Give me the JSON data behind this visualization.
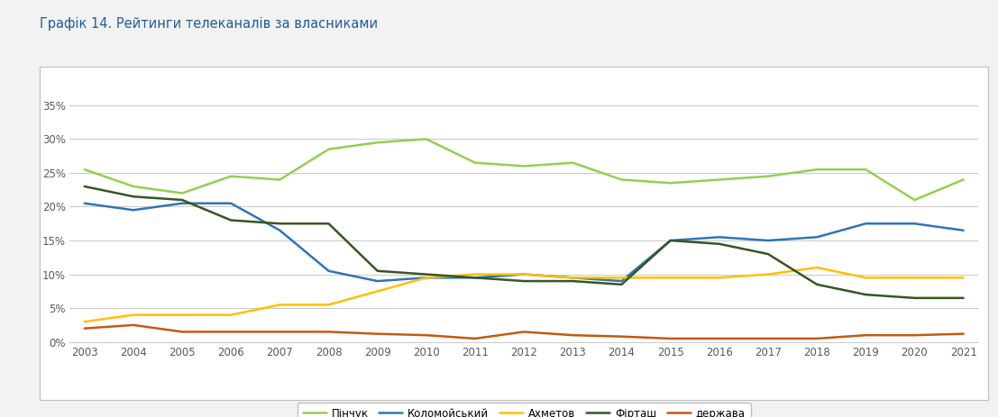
{
  "title": "Графік 14. Рейтинги телеканалів за власниками",
  "years": [
    2003,
    2004,
    2005,
    2006,
    2007,
    2008,
    2009,
    2010,
    2011,
    2012,
    2013,
    2014,
    2015,
    2016,
    2017,
    2018,
    2019,
    2020,
    2021
  ],
  "series": {
    "Пінчук": {
      "values": [
        0.255,
        0.23,
        0.22,
        0.245,
        0.24,
        0.285,
        0.295,
        0.3,
        0.265,
        0.26,
        0.265,
        0.24,
        0.235,
        0.24,
        0.245,
        0.255,
        0.255,
        0.21,
        0.24
      ],
      "color": "#92d050",
      "linewidth": 1.8
    },
    "Коломойський": {
      "values": [
        0.205,
        0.195,
        0.205,
        0.205,
        0.165,
        0.105,
        0.09,
        0.095,
        0.095,
        0.1,
        0.095,
        0.09,
        0.15,
        0.155,
        0.15,
        0.155,
        0.175,
        0.175,
        0.165
      ],
      "color": "#2e75b6",
      "linewidth": 1.8
    },
    "Ахметов": {
      "values": [
        0.03,
        0.04,
        0.04,
        0.04,
        0.055,
        0.055,
        0.075,
        0.095,
        0.1,
        0.1,
        0.095,
        0.095,
        0.095,
        0.095,
        0.1,
        0.11,
        0.095,
        0.095,
        0.095
      ],
      "color": "#ffc000",
      "linewidth": 1.8
    },
    "Фірташ": {
      "values": [
        0.23,
        0.215,
        0.21,
        0.18,
        0.175,
        0.175,
        0.105,
        0.1,
        0.095,
        0.09,
        0.09,
        0.085,
        0.15,
        0.145,
        0.13,
        0.085,
        0.07,
        0.065,
        0.065
      ],
      "color": "#375623",
      "linewidth": 1.8
    },
    "держава": {
      "values": [
        0.02,
        0.025,
        0.015,
        0.015,
        0.015,
        0.015,
        0.012,
        0.01,
        0.005,
        0.015,
        0.01,
        0.008,
        0.005,
        0.005,
        0.005,
        0.005,
        0.01,
        0.01,
        0.012
      ],
      "color": "#c55a11",
      "linewidth": 1.8
    }
  },
  "ylim": [
    0,
    0.37
  ],
  "yticks": [
    0.0,
    0.05,
    0.1,
    0.15,
    0.2,
    0.25,
    0.3,
    0.35
  ],
  "ytick_labels": [
    "0%",
    "5%",
    "10%",
    "15%",
    "20%",
    "25%",
    "30%",
    "35%"
  ],
  "background_color": "#f2f2f2",
  "plot_bg_color": "#ffffff",
  "grid_color": "#bfbfbf",
  "title_color": "#1f5c99",
  "title_fontsize": 10.5,
  "axis_fontsize": 8.5,
  "legend_fontsize": 8.5,
  "box_edge_color": "#bfbfbf"
}
